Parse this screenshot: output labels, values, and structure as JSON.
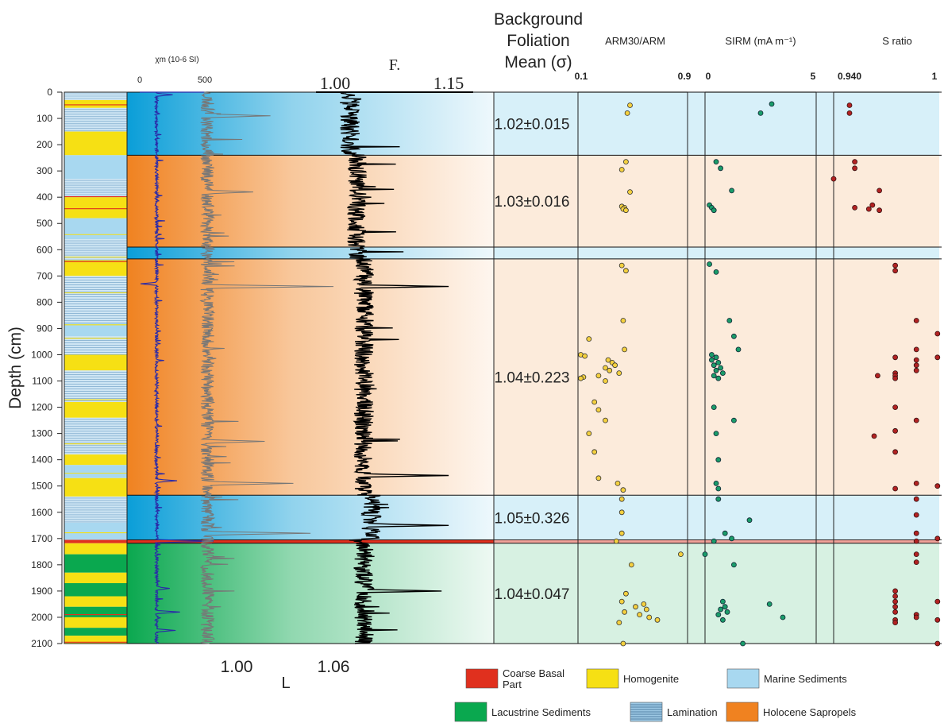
{
  "chart_data": {
    "type": "scatter",
    "figure_type": "multi-panel sediment core depth log",
    "depth_axis": {
      "label": "Depth (cm)",
      "range": [
        0,
        2100
      ],
      "ticks": [
        0,
        100,
        200,
        300,
        400,
        500,
        600,
        700,
        800,
        900,
        1000,
        1100,
        1200,
        1300,
        1400,
        1500,
        1600,
        1700,
        1800,
        1900,
        2000,
        2100
      ],
      "inverted": true
    },
    "zones": [
      {
        "top": 0,
        "bottom": 240,
        "unit": "Marine Sediments",
        "color": "#0a9ed8",
        "foliation": "1.02±0.015"
      },
      {
        "top": 240,
        "bottom": 590,
        "unit": "Holocene Sapropels",
        "color": "#f08220",
        "foliation": "1.03±0.016"
      },
      {
        "top": 590,
        "bottom": 635,
        "unit": "Marine Sediments",
        "color": "#0a9ed8",
        "foliation": ""
      },
      {
        "top": 635,
        "bottom": 1535,
        "unit": "Holocene Sapropels",
        "color": "#f08220",
        "foliation": "1.04±0.223"
      },
      {
        "top": 1535,
        "bottom": 1705,
        "unit": "Marine Sediments",
        "color": "#0a9ed8",
        "foliation": "1.05±0.326"
      },
      {
        "top": 1705,
        "bottom": 1718,
        "unit": "Coarse Basal Part",
        "color": "#e0301e",
        "foliation": ""
      },
      {
        "top": 1718,
        "bottom": 2100,
        "unit": "Lacustrine Sediments",
        "color": "#0aa84f",
        "foliation": "1.04±0.047"
      }
    ],
    "lithology_column": [
      {
        "top": 0,
        "bottom": 30,
        "unit": "Lamination"
      },
      {
        "top": 30,
        "bottom": 60,
        "unit": "Homogenite"
      },
      {
        "top": 60,
        "bottom": 150,
        "unit": "Lamination"
      },
      {
        "top": 150,
        "bottom": 240,
        "unit": "Homogenite"
      },
      {
        "top": 240,
        "bottom": 330,
        "unit": "Marine Sediments"
      },
      {
        "top": 330,
        "bottom": 400,
        "unit": "Lamination"
      },
      {
        "top": 400,
        "bottom": 480,
        "unit": "Homogenite"
      },
      {
        "top": 480,
        "bottom": 560,
        "unit": "Marine Sediments"
      },
      {
        "top": 560,
        "bottom": 640,
        "unit": "Lamination"
      },
      {
        "top": 640,
        "bottom": 700,
        "unit": "Homogenite"
      },
      {
        "top": 700,
        "bottom": 880,
        "unit": "Lamination"
      },
      {
        "top": 880,
        "bottom": 930,
        "unit": "Marine Sediments"
      },
      {
        "top": 930,
        "bottom": 1000,
        "unit": "Lamination"
      },
      {
        "top": 1000,
        "bottom": 1060,
        "unit": "Homogenite"
      },
      {
        "top": 1060,
        "bottom": 1180,
        "unit": "Lamination"
      },
      {
        "top": 1180,
        "bottom": 1240,
        "unit": "Homogenite"
      },
      {
        "top": 1240,
        "bottom": 1380,
        "unit": "Lamination"
      },
      {
        "top": 1380,
        "bottom": 1420,
        "unit": "Homogenite"
      },
      {
        "top": 1420,
        "bottom": 1470,
        "unit": "Marine Sediments"
      },
      {
        "top": 1470,
        "bottom": 1540,
        "unit": "Homogenite"
      },
      {
        "top": 1540,
        "bottom": 1640,
        "unit": "Lamination"
      },
      {
        "top": 1640,
        "bottom": 1705,
        "unit": "Marine Sediments"
      },
      {
        "top": 1705,
        "bottom": 1718,
        "unit": "Coarse Basal Part"
      },
      {
        "top": 1718,
        "bottom": 1760,
        "unit": "Homogenite"
      },
      {
        "top": 1760,
        "bottom": 1830,
        "unit": "Lacustrine Sediments"
      },
      {
        "top": 1830,
        "bottom": 1870,
        "unit": "Homogenite"
      },
      {
        "top": 1870,
        "bottom": 1920,
        "unit": "Lacustrine Sediments"
      },
      {
        "top": 1920,
        "bottom": 1960,
        "unit": "Homogenite"
      },
      {
        "top": 1960,
        "bottom": 2000,
        "unit": "Lacustrine Sediments"
      },
      {
        "top": 2000,
        "bottom": 2040,
        "unit": "Homogenite"
      },
      {
        "top": 2040,
        "bottom": 2070,
        "unit": "Lacustrine Sediments"
      },
      {
        "top": 2070,
        "bottom": 2100,
        "unit": "Homogenite"
      }
    ],
    "panels": {
      "chi": {
        "label": "χm (10-6 SI)",
        "range": [
          0,
          500
        ],
        "ticks": [
          "0",
          "500"
        ],
        "color": "#2a2aa8",
        "baseline": 170,
        "spikes": [
          [
            10,
            280
          ],
          [
            730,
            60
          ],
          [
            1480,
            310
          ],
          [
            1710,
            560
          ],
          [
            1890,
            260
          ],
          [
            1980,
            330
          ],
          [
            2050,
            300
          ]
        ]
      },
      "L": {
        "label": "L",
        "range": [
          0.98,
          1.12
        ],
        "ticks": [
          "1.00",
          "1.06"
        ],
        "color": "#777777",
        "baseline": 1.01,
        "spikes": [
          [
            90,
            1.065
          ],
          [
            380,
            1.05
          ],
          [
            740,
            1.12
          ],
          [
            1330,
            1.06
          ],
          [
            1490,
            1.085
          ],
          [
            1680,
            1.1
          ]
        ]
      },
      "F": {
        "label": "F.",
        "range": [
          0.98,
          1.17
        ],
        "ticks": [
          "1.00",
          "1.15"
        ],
        "color": "#000000",
        "zone_means": [
          {
            "top": 0,
            "bottom": 240,
            "value": 1.02
          },
          {
            "top": 240,
            "bottom": 590,
            "value": 1.03
          },
          {
            "top": 635,
            "bottom": 1535,
            "value": 1.04
          },
          {
            "top": 1535,
            "bottom": 1705,
            "value": 1.05
          },
          {
            "top": 1718,
            "bottom": 2100,
            "value": 1.04
          }
        ],
        "spikes": [
          [
            740,
            1.16
          ],
          [
            1460,
            1.16
          ],
          [
            1650,
            1.16
          ],
          [
            1900,
            1.15
          ]
        ]
      },
      "foliation_header": [
        "Background",
        "Foliation",
        "Mean (σ)"
      ],
      "arm": {
        "label": "ARM30/ARM",
        "range": [
          0.1,
          0.9
        ],
        "ticks": [
          "0.1",
          "0.9"
        ],
        "color": "#f4d03f",
        "points": [
          [
            50,
            0.48
          ],
          [
            80,
            0.46
          ],
          [
            265,
            0.45
          ],
          [
            295,
            0.42
          ],
          [
            380,
            0.48
          ],
          [
            435,
            0.42
          ],
          [
            440,
            0.44
          ],
          [
            445,
            0.43
          ],
          [
            450,
            0.45
          ],
          [
            660,
            0.42
          ],
          [
            680,
            0.45
          ],
          [
            870,
            0.43
          ],
          [
            940,
            0.18
          ],
          [
            980,
            0.44
          ],
          [
            1000,
            0.12
          ],
          [
            1005,
            0.15
          ],
          [
            1020,
            0.32
          ],
          [
            1030,
            0.35
          ],
          [
            1040,
            0.37
          ],
          [
            1050,
            0.3
          ],
          [
            1060,
            0.33
          ],
          [
            1070,
            0.4
          ],
          [
            1080,
            0.25
          ],
          [
            1085,
            0.14
          ],
          [
            1090,
            0.12
          ],
          [
            1100,
            0.3
          ],
          [
            1180,
            0.22
          ],
          [
            1210,
            0.25
          ],
          [
            1250,
            0.3
          ],
          [
            1300,
            0.18
          ],
          [
            1370,
            0.22
          ],
          [
            1470,
            0.25
          ],
          [
            1490,
            0.39
          ],
          [
            1515,
            0.43
          ],
          [
            1550,
            0.42
          ],
          [
            1600,
            0.42
          ],
          [
            1680,
            0.42
          ],
          [
            1710,
            0.38
          ],
          [
            1760,
            0.85
          ],
          [
            1800,
            0.49
          ],
          [
            1910,
            0.45
          ],
          [
            1940,
            0.42
          ],
          [
            1950,
            0.58
          ],
          [
            1960,
            0.52
          ],
          [
            1970,
            0.6
          ],
          [
            1980,
            0.44
          ],
          [
            1990,
            0.55
          ],
          [
            2000,
            0.62
          ],
          [
            2010,
            0.68
          ],
          [
            2020,
            0.4
          ],
          [
            2100,
            0.43
          ]
        ]
      },
      "sirm": {
        "label": "SIRM (mA m⁻¹)",
        "range": [
          0,
          5
        ],
        "ticks": [
          "0",
          "5"
        ],
        "color": "#1a9c6a",
        "points": [
          [
            45,
            3.0
          ],
          [
            80,
            2.5
          ],
          [
            265,
            0.5
          ],
          [
            290,
            0.7
          ],
          [
            375,
            1.2
          ],
          [
            430,
            0.2
          ],
          [
            440,
            0.3
          ],
          [
            450,
            0.4
          ],
          [
            655,
            0.2
          ],
          [
            685,
            0.5
          ],
          [
            870,
            1.1
          ],
          [
            930,
            1.3
          ],
          [
            980,
            1.5
          ],
          [
            1000,
            0.3
          ],
          [
            1010,
            0.5
          ],
          [
            1020,
            0.3
          ],
          [
            1030,
            0.6
          ],
          [
            1040,
            0.4
          ],
          [
            1050,
            0.7
          ],
          [
            1060,
            0.5
          ],
          [
            1070,
            0.8
          ],
          [
            1080,
            0.4
          ],
          [
            1090,
            0.6
          ],
          [
            1200,
            0.4
          ],
          [
            1250,
            1.3
          ],
          [
            1300,
            0.5
          ],
          [
            1400,
            0.6
          ],
          [
            1490,
            0.5
          ],
          [
            1510,
            0.6
          ],
          [
            1550,
            0.6
          ],
          [
            1630,
            2.0
          ],
          [
            1680,
            0.9
          ],
          [
            1700,
            1.2
          ],
          [
            1710,
            0.4
          ],
          [
            1760,
            0.0
          ],
          [
            1800,
            1.3
          ],
          [
            1940,
            0.8
          ],
          [
            1960,
            0.9
          ],
          [
            1970,
            0.7
          ],
          [
            1980,
            1.0
          ],
          [
            1990,
            0.6
          ],
          [
            2000,
            3.5
          ],
          [
            2010,
            0.8
          ],
          [
            1950,
            2.9
          ],
          [
            2100,
            1.7
          ]
        ]
      },
      "sratio": {
        "label": "S ratio",
        "range": [
          0.94,
          1.0
        ],
        "ticks": [
          "0.940",
          "1"
        ],
        "color": "#b22222",
        "points": [
          [
            50,
            0.949
          ],
          [
            80,
            0.949
          ],
          [
            265,
            0.952
          ],
          [
            290,
            0.952
          ],
          [
            330,
            0.94
          ],
          [
            375,
            0.966
          ],
          [
            430,
            0.962
          ],
          [
            440,
            0.952
          ],
          [
            445,
            0.96
          ],
          [
            450,
            0.966
          ],
          [
            660,
            0.975
          ],
          [
            680,
            0.975
          ],
          [
            870,
            0.987
          ],
          [
            920,
            0.999
          ],
          [
            980,
            0.987
          ],
          [
            1010,
            0.975
          ],
          [
            1010,
            0.999
          ],
          [
            1020,
            0.987
          ],
          [
            1040,
            0.987
          ],
          [
            1060,
            0.987
          ],
          [
            1070,
            0.975
          ],
          [
            1080,
            0.975
          ],
          [
            1080,
            0.965
          ],
          [
            1090,
            0.975
          ],
          [
            1200,
            0.975
          ],
          [
            1250,
            0.987
          ],
          [
            1290,
            0.975
          ],
          [
            1310,
            0.963
          ],
          [
            1370,
            0.975
          ],
          [
            1490,
            0.987
          ],
          [
            1500,
            0.999
          ],
          [
            1510,
            0.975
          ],
          [
            1550,
            0.987
          ],
          [
            1610,
            0.987
          ],
          [
            1680,
            0.987
          ],
          [
            1700,
            0.999
          ],
          [
            1710,
            0.987
          ],
          [
            1760,
            0.987
          ],
          [
            1790,
            0.987
          ],
          [
            1900,
            0.975
          ],
          [
            1920,
            0.975
          ],
          [
            1940,
            0.975
          ],
          [
            1960,
            0.975
          ],
          [
            1980,
            0.975
          ],
          [
            1990,
            0.987
          ],
          [
            2000,
            0.987
          ],
          [
            2010,
            0.975
          ],
          [
            2020,
            0.975
          ],
          [
            1940,
            0.999
          ],
          [
            2010,
            0.999
          ],
          [
            2100,
            0.999
          ]
        ]
      }
    },
    "legend": {
      "entries": [
        {
          "label": "Coarse Basal\nPart",
          "style": "solid",
          "color": "#e0301e"
        },
        {
          "label": "Homogenite",
          "style": "solid",
          "color": "#f6e014"
        },
        {
          "label": "Marine Sediments",
          "style": "solid",
          "color": "#a8d8f0"
        },
        {
          "label": "Lacustrine Sediments",
          "style": "solid",
          "color": "#0aa84f"
        },
        {
          "label": "Lamination",
          "style": "lines",
          "color": "#9cc8e4"
        },
        {
          "label": "Holocene Sapropels",
          "style": "solid",
          "color": "#f08220"
        }
      ],
      "placement": "bottom-right"
    }
  }
}
